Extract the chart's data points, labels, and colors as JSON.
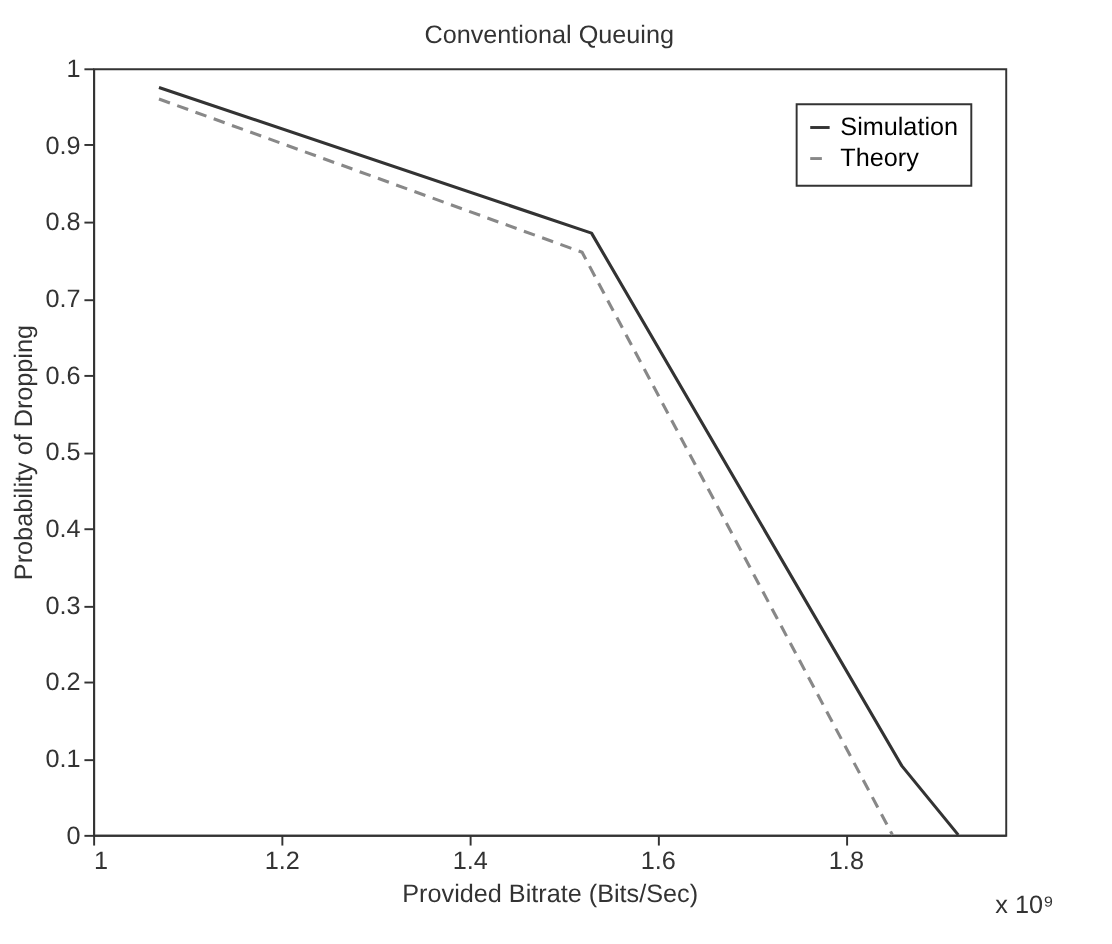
{
  "chart_data": {
    "type": "line",
    "title": "Conventional Queuing",
    "xlabel": "Provided Bitrate (Bits/Sec)",
    "ylabel": "Probability of Dropping",
    "annotations": [
      "x 10⁹"
    ],
    "series": [
      {
        "name": "Simulation",
        "color": "#333333",
        "line_style": "solid",
        "x": [
          1.07,
          1.53,
          1.86,
          1.92
        ],
        "values": [
          0.975,
          0.785,
          0.09,
          0
        ]
      },
      {
        "name": "Theory",
        "color": "#888888",
        "line_style": "dashed",
        "x": [
          1.07,
          1.52,
          1.85
        ],
        "values": [
          0.96,
          0.76,
          0
        ]
      }
    ],
    "xlim": [
      1,
      1.97
    ],
    "xticks": [
      1,
      1.2,
      1.4,
      1.6,
      1.8
    ],
    "ylim": [
      0,
      1
    ],
    "yticks": [
      0,
      0.1,
      0.2,
      0.3,
      0.4,
      0.5,
      0.6,
      0.7,
      0.8,
      0.9,
      1
    ],
    "grid": false,
    "legend": "top right",
    "marker": "none"
  }
}
